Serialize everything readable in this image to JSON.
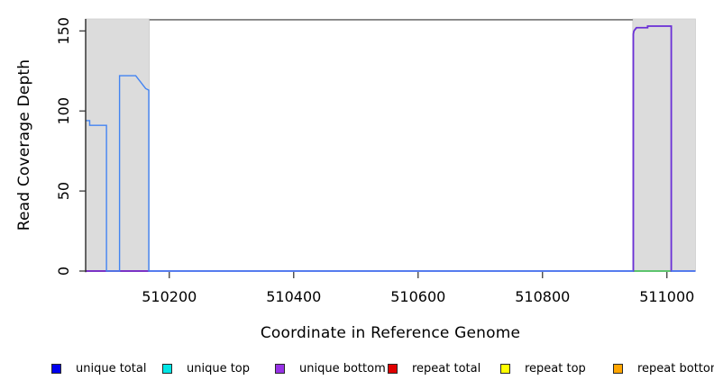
{
  "chart_data": {
    "type": "line",
    "title": "",
    "xlabel": "Coordinate in Reference Genome",
    "ylabel": "Read Coverage Depth",
    "xlim": [
      510065.5,
      511046
    ],
    "ylim": [
      0,
      157.5
    ],
    "xticks": [
      510200,
      510400,
      510600,
      510800,
      511000
    ],
    "yticks": [
      0,
      50,
      100,
      150
    ],
    "grid": false,
    "shaded_regions": [
      {
        "x0": 510065.5,
        "x1": 510168,
        "color": "#dcdcdc",
        "edge": "#c9c9c9"
      },
      {
        "x0": 510945,
        "x1": 511046,
        "color": "#dcdcdc",
        "edge": "#c9c9c9"
      }
    ],
    "top_border": {
      "x0": 510168,
      "x1": 510945,
      "y": 157,
      "color": "#595959",
      "width": 1.4
    },
    "series": [
      {
        "name": "repeat-total-baseline",
        "color": "#ee5252",
        "width": 2,
        "segments": [
          [
            [
              510066,
              0
            ],
            [
              510168,
              0
            ]
          ]
        ]
      },
      {
        "name": "overlap-green-baseline",
        "color": "#5dc46e",
        "width": 2,
        "segments": [
          [
            [
              510946,
              0
            ],
            [
              511007,
              0
            ]
          ]
        ]
      },
      {
        "name": "unique-bottom",
        "color": "#6a2fd6",
        "width": 1.8,
        "segments": [
          [
            [
              510066,
              0
            ],
            [
              510946,
              0
            ],
            [
              510946,
              148
            ],
            [
              510947,
              150
            ],
            [
              510949,
              151
            ],
            [
              510951,
              152
            ],
            [
              510969,
              152
            ],
            [
              510969,
              153
            ],
            [
              511007,
              153
            ],
            [
              511007,
              0
            ],
            [
              511046,
              0
            ]
          ]
        ]
      },
      {
        "name": "unique-total",
        "color": "#4384f2",
        "width": 1.4,
        "segments": [
          [
            [
              510066,
              94
            ],
            [
              510072,
              94
            ],
            [
              510072,
              91
            ],
            [
              510099,
              91
            ],
            [
              510099,
              0
            ],
            [
              510120,
              0
            ],
            [
              510120,
              122
            ],
            [
              510146,
              122
            ],
            [
              510150,
              120
            ],
            [
              510154,
              118
            ],
            [
              510158,
              116
            ],
            [
              510162,
              114
            ],
            [
              510167,
              113
            ],
            [
              510167,
              0
            ],
            [
              510946,
              0
            ]
          ],
          [
            [
              511007,
              0
            ],
            [
              511046,
              0
            ]
          ]
        ]
      }
    ],
    "legend_position": "bottom"
  },
  "legend": {
    "items": [
      {
        "label": "unique total",
        "color": "#0000ee"
      },
      {
        "label": "unique top",
        "color": "#00e6e6"
      },
      {
        "label": "unique bottom",
        "color": "#9732e6"
      },
      {
        "label": "repeat total",
        "color": "#e00000"
      },
      {
        "label": "repeat top",
        "color": "#ffff00"
      },
      {
        "label": "repeat bottom",
        "color": "#ffa500"
      }
    ]
  }
}
